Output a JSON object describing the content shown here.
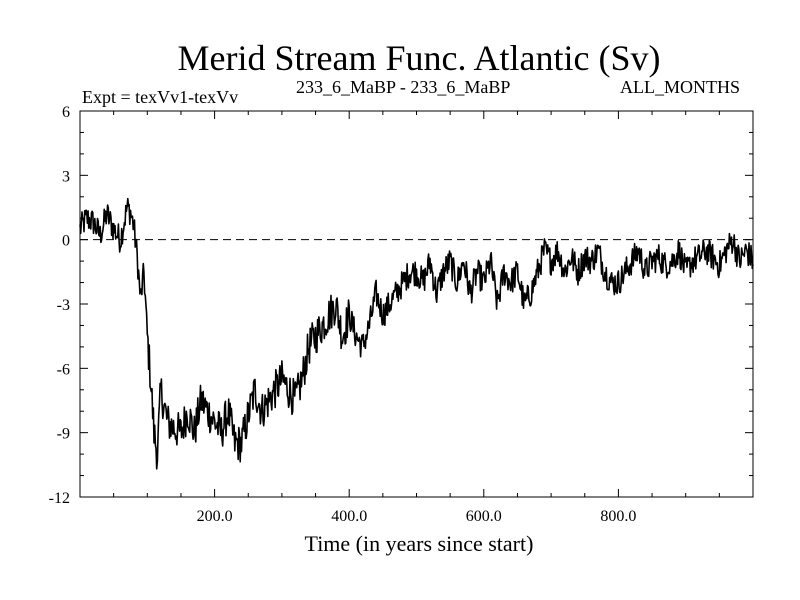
{
  "chart_data": {
    "type": "line",
    "title": "Merid Stream Func. Atlantic (Sv)",
    "subtitle_left": "Expt = texVv1-texVv",
    "subtitle_center": "233_6_MaBP - 233_6_MaBP",
    "subtitle_right": "ALL_MONTHS",
    "xlabel": "Time (in years since start)",
    "ylabel": "",
    "xlim": [
      0,
      1000
    ],
    "ylim": [
      -12,
      6
    ],
    "xticks": [
      200,
      400,
      600,
      800
    ],
    "xtick_labels": [
      "200.0",
      "400.0",
      "600.0",
      "800.0"
    ],
    "yticks": [
      6,
      3,
      0,
      -3,
      -6,
      -9,
      -12
    ],
    "ytick_labels": [
      "6",
      "3",
      "0",
      "-3",
      "-6",
      "-9",
      "-12"
    ],
    "grid": false,
    "reference_line": {
      "y": 0,
      "style": "dashed"
    },
    "series": [
      {
        "name": "Merid Stream Func. Atlantic",
        "color": "#000000",
        "x": [
          0,
          10,
          20,
          30,
          40,
          50,
          60,
          70,
          75,
          80,
          85,
          90,
          95,
          100,
          105,
          110,
          115,
          120,
          130,
          140,
          150,
          160,
          170,
          180,
          190,
          200,
          210,
          220,
          230,
          240,
          250,
          260,
          270,
          280,
          290,
          300,
          310,
          320,
          330,
          340,
          350,
          360,
          370,
          380,
          390,
          400,
          410,
          420,
          430,
          440,
          450,
          460,
          470,
          480,
          490,
          500,
          510,
          520,
          530,
          540,
          550,
          560,
          570,
          580,
          590,
          600,
          610,
          620,
          630,
          640,
          650,
          660,
          670,
          680,
          690,
          700,
          710,
          720,
          730,
          740,
          750,
          760,
          770,
          780,
          790,
          800,
          810,
          820,
          830,
          840,
          850,
          860,
          870,
          880,
          890,
          900,
          910,
          920,
          930,
          940,
          950,
          960,
          970,
          980,
          990,
          1000
        ],
        "values": [
          0.5,
          1.0,
          0.8,
          0.2,
          1.2,
          0.5,
          0.0,
          1.5,
          1.3,
          0.6,
          -0.8,
          -2.8,
          -1.5,
          -4.5,
          -6.5,
          -9.0,
          -10.0,
          -7.0,
          -8.5,
          -8.8,
          -9.0,
          -8.0,
          -9.0,
          -7.5,
          -8.0,
          -8.5,
          -9.0,
          -8.0,
          -9.5,
          -9.5,
          -8.2,
          -7.0,
          -8.0,
          -7.5,
          -7.0,
          -6.5,
          -7.0,
          -7.5,
          -6.5,
          -5.0,
          -4.5,
          -4.0,
          -3.5,
          -3.0,
          -4.5,
          -3.5,
          -4.5,
          -5.0,
          -4.0,
          -2.5,
          -3.5,
          -3.0,
          -2.5,
          -2.0,
          -1.5,
          -1.5,
          -2.0,
          -1.0,
          -2.5,
          -1.5,
          -1.0,
          -2.0,
          -1.0,
          -2.5,
          -1.5,
          -2.0,
          -1.0,
          -3.0,
          -1.5,
          -2.0,
          -1.5,
          -3.0,
          -2.5,
          -1.5,
          -0.5,
          -1.0,
          -0.5,
          -1.5,
          -0.8,
          -1.5,
          -0.8,
          -1.0,
          -0.5,
          -1.5,
          -2.0,
          -2.0,
          -1.5,
          -1.0,
          -0.5,
          -1.5,
          -1.0,
          -0.8,
          -1.2,
          -1.0,
          -0.5,
          -1.5,
          -1.0,
          -0.8,
          -0.5,
          -0.8,
          -1.2,
          -0.5,
          0.0,
          -1.0,
          -0.5,
          -1.0
        ]
      }
    ]
  }
}
